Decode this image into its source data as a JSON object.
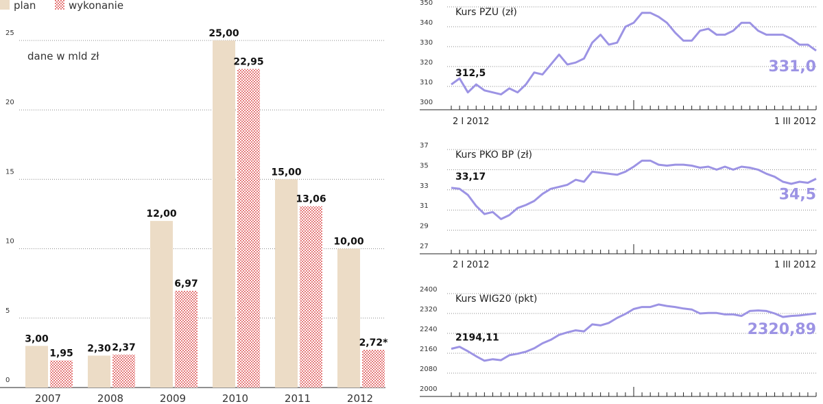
{
  "colors": {
    "plan": "#ecdcc6",
    "wykonanie": "#e57a7a",
    "line": "#9c93e4",
    "grid": "#888888"
  },
  "chart_data": [
    {
      "type": "bar",
      "legend": [
        "plan",
        "wykonanie"
      ],
      "note": "dane w mld zł",
      "categories": [
        "2007",
        "2008",
        "2009",
        "2010",
        "2011",
        "2012"
      ],
      "series": [
        {
          "name": "plan",
          "values": [
            3.0,
            2.3,
            12.0,
            25.0,
            15.0,
            10.0
          ],
          "labels": [
            "3,00",
            "2,30",
            "12,00",
            "25,00",
            "15,00",
            "10,00"
          ]
        },
        {
          "name": "wykonanie",
          "values": [
            1.95,
            2.37,
            6.97,
            22.95,
            13.06,
            2.72
          ],
          "labels": [
            "1,95",
            "2,37",
            "6,97",
            "22,95",
            "13,06",
            "2,72*"
          ]
        }
      ],
      "yticks": [
        "0",
        "5",
        "10",
        "15",
        "20",
        "25"
      ],
      "ylim": [
        0,
        25
      ]
    },
    {
      "type": "line",
      "title": "Kurs PZU (zł)",
      "yticks": [
        "300",
        "310",
        "320",
        "330",
        "340",
        "350"
      ],
      "ylim": [
        300,
        350
      ],
      "x_start": "2 I 2012",
      "x_end": "1 III 2012",
      "start_label": "312,5",
      "end_label": "331,0",
      "values": [
        311,
        314,
        307,
        311,
        308,
        307,
        306,
        309,
        307,
        311,
        317,
        316,
        321,
        326,
        321,
        322,
        324,
        332,
        336,
        331,
        332,
        340,
        342,
        347,
        347,
        345,
        342,
        337,
        333,
        333,
        338,
        339,
        336,
        336,
        338,
        342,
        342,
        338,
        336,
        336,
        336,
        334,
        331,
        331,
        328
      ]
    },
    {
      "type": "line",
      "title": "Kurs PKO BP (zł)",
      "yticks": [
        "27",
        "29",
        "31",
        "33",
        "35",
        "37"
      ],
      "ylim": [
        27,
        37
      ],
      "x_start": "2 I 2012",
      "x_end": "1 III 2012",
      "start_label": "33,17",
      "end_label": "34,5",
      "values": [
        33.2,
        33.1,
        32.5,
        31.4,
        30.6,
        30.8,
        30.1,
        30.5,
        31.2,
        31.5,
        31.9,
        32.6,
        33.1,
        33.3,
        33.5,
        34.0,
        33.8,
        34.8,
        34.7,
        34.6,
        34.5,
        34.8,
        35.3,
        35.9,
        35.9,
        35.5,
        35.4,
        35.5,
        35.5,
        35.4,
        35.2,
        35.3,
        35.0,
        35.3,
        35.0,
        35.3,
        35.2,
        35.0,
        34.6,
        34.3,
        33.8,
        33.6,
        33.8,
        33.7,
        34.1
      ]
    },
    {
      "type": "line",
      "title": "Kurs WIG20 (pkt)",
      "yticks": [
        "2000",
        "2080",
        "2160",
        "2240",
        "2320",
        "2400"
      ],
      "ylim": [
        2000,
        2400
      ],
      "x_start": "",
      "x_end": "",
      "start_label": "2194,11",
      "end_label": "2320,89",
      "values": [
        2178,
        2186,
        2168,
        2148,
        2130,
        2136,
        2132,
        2152,
        2158,
        2166,
        2180,
        2200,
        2214,
        2234,
        2244,
        2252,
        2248,
        2276,
        2272,
        2282,
        2302,
        2318,
        2338,
        2346,
        2346,
        2356,
        2350,
        2346,
        2340,
        2336,
        2320,
        2322,
        2322,
        2316,
        2316,
        2310,
        2330,
        2332,
        2330,
        2320,
        2306,
        2310,
        2312,
        2316,
        2320
      ]
    }
  ]
}
